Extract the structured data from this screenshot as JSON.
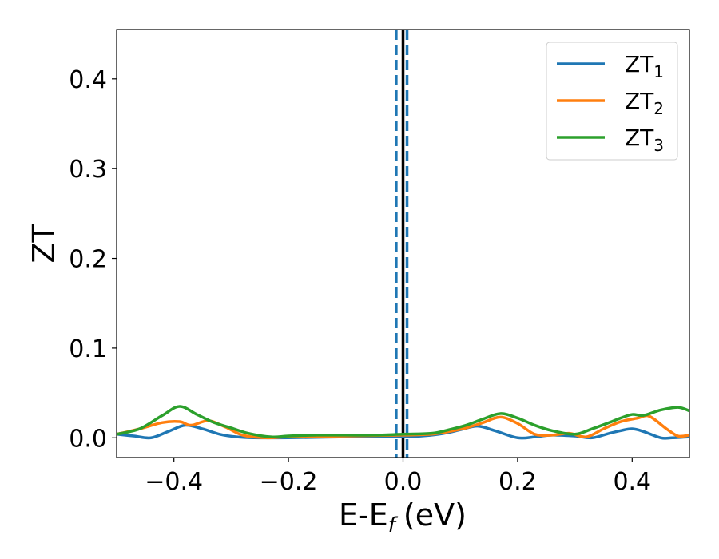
{
  "chart_data": {
    "type": "line",
    "xlabel": "E-E",
    "xlabel_sub": "f",
    "xlabel_unit": "(eV)",
    "ylabel": "ZT",
    "xlim": [
      -0.5,
      0.5
    ],
    "ylim": [
      -0.022,
      0.455
    ],
    "xticks": [
      -0.4,
      -0.2,
      0.0,
      0.2,
      0.4
    ],
    "xtick_labels": [
      "−0.4",
      "−0.2",
      "0.0",
      "0.2",
      "0.4"
    ],
    "yticks": [
      0.0,
      0.1,
      0.2,
      0.3,
      0.4
    ],
    "ytick_labels": [
      "0.0",
      "0.1",
      "0.2",
      "0.3",
      "0.4"
    ],
    "grid": false,
    "legend_placement": "top-right",
    "vlines": [
      {
        "x": 0.0,
        "style": "solid",
        "color": "#000000"
      },
      {
        "x": -0.012,
        "style": "dashed",
        "color": "#1f77b4"
      },
      {
        "x": 0.007,
        "style": "dashed",
        "color": "#1f77b4"
      }
    ],
    "series": [
      {
        "name": "ZT",
        "name_sub": "1",
        "color": "#1f77b4",
        "x": [
          -0.5,
          -0.47,
          -0.44,
          -0.41,
          -0.38,
          -0.35,
          -0.32,
          -0.29,
          -0.26,
          -0.2,
          -0.1,
          0.0,
          0.05,
          0.08,
          0.1,
          0.13,
          0.16,
          0.2,
          0.23,
          0.26,
          0.3,
          0.33,
          0.36,
          0.38,
          0.4,
          0.42,
          0.45,
          0.47,
          0.5
        ],
        "y": [
          0.004,
          0.002,
          0.0,
          0.007,
          0.014,
          0.01,
          0.004,
          0.001,
          0.0,
          0.0,
          0.001,
          0.001,
          0.003,
          0.006,
          0.009,
          0.013,
          0.008,
          0.0,
          0.001,
          0.003,
          0.002,
          0.0,
          0.005,
          0.008,
          0.01,
          0.007,
          0.0,
          0.0,
          0.001
        ]
      },
      {
        "name": "ZT",
        "name_sub": "2",
        "color": "#ff7f0e",
        "x": [
          -0.5,
          -0.46,
          -0.42,
          -0.39,
          -0.37,
          -0.34,
          -0.31,
          -0.28,
          -0.24,
          -0.2,
          -0.1,
          0.0,
          0.05,
          0.08,
          0.11,
          0.14,
          0.17,
          0.2,
          0.23,
          0.26,
          0.29,
          0.32,
          0.35,
          0.38,
          0.41,
          0.43,
          0.46,
          0.48,
          0.5
        ],
        "y": [
          0.004,
          0.01,
          0.017,
          0.018,
          0.014,
          0.019,
          0.012,
          0.003,
          0.0,
          0.001,
          0.002,
          0.003,
          0.004,
          0.007,
          0.011,
          0.017,
          0.023,
          0.016,
          0.004,
          0.003,
          0.005,
          0.001,
          0.01,
          0.018,
          0.022,
          0.024,
          0.01,
          0.002,
          0.003
        ]
      },
      {
        "name": "ZT",
        "name_sub": "3",
        "color": "#2ca02c",
        "x": [
          -0.5,
          -0.46,
          -0.42,
          -0.39,
          -0.36,
          -0.33,
          -0.3,
          -0.27,
          -0.23,
          -0.2,
          -0.15,
          -0.1,
          -0.05,
          0.0,
          0.05,
          0.08,
          0.11,
          0.14,
          0.17,
          0.2,
          0.23,
          0.26,
          0.3,
          0.33,
          0.36,
          0.38,
          0.4,
          0.42,
          0.45,
          0.48,
          0.5
        ],
        "y": [
          0.004,
          0.01,
          0.025,
          0.035,
          0.026,
          0.017,
          0.011,
          0.005,
          0.001,
          0.002,
          0.003,
          0.003,
          0.003,
          0.004,
          0.005,
          0.009,
          0.014,
          0.021,
          0.027,
          0.022,
          0.014,
          0.008,
          0.004,
          0.01,
          0.017,
          0.022,
          0.026,
          0.025,
          0.031,
          0.034,
          0.03
        ]
      }
    ]
  }
}
